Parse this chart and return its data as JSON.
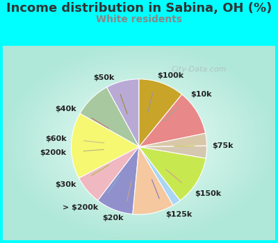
{
  "title": "Income distribution in Sabina, OH (%)",
  "subtitle": "White residents",
  "bg_color": "#00FFFF",
  "title_color": "#333333",
  "subtitle_color": "#888888",
  "labels": [
    "$100k",
    "$10k",
    "$75k",
    "$150k",
    "$125k",
    "$20k",
    "> $200k",
    "$30k",
    "$200k",
    "$60k",
    "$40k",
    "$50k"
  ],
  "sizes": [
    8,
    9,
    16,
    7,
    9,
    10,
    2,
    12,
    3,
    3,
    11,
    11
  ],
  "colors": [
    "#b8aad5",
    "#a8c8a0",
    "#f5f870",
    "#f0b8c0",
    "#9090cc",
    "#f5c8a0",
    "#aad5f5",
    "#c8e850",
    "#d5c8b0",
    "#d8c8a8",
    "#e88888",
    "#c8a428"
  ],
  "title_fontsize": 13,
  "subtitle_fontsize": 10,
  "label_fontsize": 8,
  "startangle": 90,
  "line_colors": [
    "#9090bb",
    "#90b090",
    "#c8c840",
    "#d090a0",
    "#7070bb",
    "#d0a880",
    "#88b8d5",
    "#a0c030",
    "#b0a888",
    "#c0b898",
    "#cc6868",
    "#a08420"
  ],
  "watermark": "City-Data.com",
  "chart_area": [
    0.0,
    0.0,
    1.0,
    1.0
  ]
}
